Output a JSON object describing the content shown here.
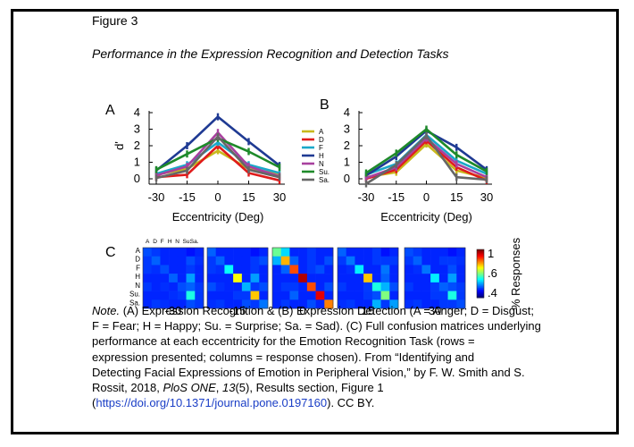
{
  "figure": {
    "number": "Figure 3",
    "title": "Performance in the Expression Recognition and Detection Tasks"
  },
  "chart_data": [
    {
      "type": "line",
      "panel": "A",
      "title": "Expression Recognition",
      "xlabel": "Eccentricity (Deg)",
      "ylabel": "d'",
      "x": [
        -30,
        -15,
        0,
        15,
        30
      ],
      "xlim": [
        -30,
        30
      ],
      "ylim": [
        0,
        4
      ],
      "xticks": [
        "-30",
        "-15",
        "0",
        "15",
        "30"
      ],
      "yticks": [
        "0",
        "1",
        "2",
        "3",
        "4"
      ],
      "series": [
        {
          "name": "A",
          "color": "#c9b81c",
          "values": [
            0.25,
            0.6,
            1.7,
            0.6,
            0.3
          ]
        },
        {
          "name": "D",
          "color": "#e01b1b",
          "values": [
            0.1,
            0.25,
            2.0,
            0.35,
            -0.1
          ]
        },
        {
          "name": "F",
          "color": "#1aa8c9",
          "values": [
            0.3,
            0.85,
            2.2,
            0.85,
            0.35
          ]
        },
        {
          "name": "H",
          "color": "#1f3a93",
          "values": [
            0.5,
            2.0,
            3.75,
            2.25,
            0.8
          ]
        },
        {
          "name": "N",
          "color": "#a8409e",
          "values": [
            0.2,
            0.75,
            2.8,
            0.75,
            0.15
          ]
        },
        {
          "name": "Su.",
          "color": "#1e8a2a",
          "values": [
            0.55,
            1.5,
            2.45,
            1.65,
            0.7
          ]
        },
        {
          "name": "Sa.",
          "color": "#666666",
          "values": [
            0.05,
            0.5,
            2.55,
            0.55,
            0.1
          ]
        }
      ]
    },
    {
      "type": "line",
      "panel": "B",
      "title": "Expression Detection",
      "xlabel": "Eccentricity (Deg)",
      "ylabel": "",
      "x": [
        -30,
        -15,
        0,
        15,
        30
      ],
      "xlim": [
        -30,
        30
      ],
      "ylim": [
        0,
        4
      ],
      "xticks": [
        "-30",
        "-15",
        "0",
        "15",
        "30"
      ],
      "yticks": [
        "0",
        "1",
        "2",
        "3",
        "4"
      ],
      "series": [
        {
          "name": "A",
          "color": "#c9b81c",
          "values": [
            0.1,
            0.4,
            2.1,
            0.5,
            0.05
          ]
        },
        {
          "name": "D",
          "color": "#e01b1b",
          "values": [
            0.0,
            0.55,
            2.3,
            0.7,
            -0.1
          ]
        },
        {
          "name": "F",
          "color": "#1aa8c9",
          "values": [
            0.25,
            0.9,
            2.65,
            1.1,
            0.3
          ]
        },
        {
          "name": "H",
          "color": "#1f3a93",
          "values": [
            0.2,
            1.35,
            2.9,
            1.9,
            0.55
          ]
        },
        {
          "name": "N",
          "color": "#a8409e",
          "values": [
            0.05,
            0.7,
            2.45,
            0.9,
            0.1
          ]
        },
        {
          "name": "Su.",
          "color": "#1e8a2a",
          "values": [
            0.35,
            1.55,
            3.0,
            1.45,
            0.45
          ]
        },
        {
          "name": "Sa.",
          "color": "#666666",
          "values": [
            -0.3,
            0.85,
            2.6,
            0.1,
            -0.05
          ]
        }
      ]
    },
    {
      "type": "heatmap",
      "panel": "C",
      "title": "Full confusion matrices",
      "row_labels": [
        "A",
        "D",
        "F",
        "H",
        "N",
        "Su.",
        "Sa."
      ],
      "col_labels": [
        "A",
        "D",
        "F",
        "H",
        "N",
        "Su.",
        "Sa."
      ],
      "eccentricities": [
        "-30",
        "-15",
        "0",
        "15",
        "30"
      ],
      "colorbar_label": "% Responses",
      "colorbar_ticks": [
        "1",
        ".6",
        ".4"
      ],
      "matrices": [
        [
          [
            0.2,
            0.18,
            0.16,
            0.16,
            0.16,
            0.14,
            0.16
          ],
          [
            0.18,
            0.22,
            0.16,
            0.16,
            0.16,
            0.2,
            0.17
          ],
          [
            0.18,
            0.17,
            0.2,
            0.16,
            0.16,
            0.18,
            0.16
          ],
          [
            0.16,
            0.16,
            0.16,
            0.22,
            0.16,
            0.28,
            0.16
          ],
          [
            0.18,
            0.16,
            0.17,
            0.16,
            0.2,
            0.22,
            0.18
          ],
          [
            0.16,
            0.16,
            0.16,
            0.17,
            0.18,
            0.4,
            0.18
          ],
          [
            0.16,
            0.18,
            0.17,
            0.16,
            0.16,
            0.2,
            0.18
          ]
        ],
        [
          [
            0.22,
            0.16,
            0.16,
            0.16,
            0.16,
            0.14,
            0.16
          ],
          [
            0.18,
            0.22,
            0.16,
            0.16,
            0.16,
            0.18,
            0.2
          ],
          [
            0.18,
            0.17,
            0.38,
            0.16,
            0.16,
            0.18,
            0.16
          ],
          [
            0.16,
            0.16,
            0.16,
            0.62,
            0.16,
            0.28,
            0.16
          ],
          [
            0.2,
            0.17,
            0.16,
            0.16,
            0.3,
            0.18,
            0.2
          ],
          [
            0.16,
            0.16,
            0.16,
            0.18,
            0.18,
            0.68,
            0.16
          ],
          [
            0.17,
            0.18,
            0.16,
            0.16,
            0.2,
            0.18,
            0.24
          ]
        ],
        [
          [
            0.48,
            0.34,
            0.16,
            0.16,
            0.18,
            0.16,
            0.16
          ],
          [
            0.3,
            0.7,
            0.22,
            0.16,
            0.18,
            0.16,
            0.2
          ],
          [
            0.16,
            0.22,
            0.8,
            0.16,
            0.18,
            0.2,
            0.16
          ],
          [
            0.16,
            0.16,
            0.16,
            0.95,
            0.16,
            0.16,
            0.16
          ],
          [
            0.16,
            0.18,
            0.18,
            0.16,
            0.8,
            0.16,
            0.2
          ],
          [
            0.16,
            0.16,
            0.22,
            0.16,
            0.16,
            0.9,
            0.16
          ],
          [
            0.16,
            0.18,
            0.16,
            0.16,
            0.2,
            0.16,
            0.75
          ]
        ],
        [
          [
            0.22,
            0.16,
            0.16,
            0.16,
            0.18,
            0.14,
            0.16
          ],
          [
            0.18,
            0.24,
            0.16,
            0.16,
            0.18,
            0.18,
            0.18
          ],
          [
            0.16,
            0.17,
            0.36,
            0.16,
            0.16,
            0.24,
            0.16
          ],
          [
            0.16,
            0.16,
            0.16,
            0.68,
            0.16,
            0.22,
            0.16
          ],
          [
            0.18,
            0.16,
            0.16,
            0.18,
            0.4,
            0.3,
            0.2
          ],
          [
            0.16,
            0.16,
            0.16,
            0.18,
            0.2,
            0.5,
            0.16
          ],
          [
            0.17,
            0.18,
            0.16,
            0.16,
            0.3,
            0.18,
            0.28
          ]
        ],
        [
          [
            0.2,
            0.18,
            0.16,
            0.16,
            0.16,
            0.14,
            0.16
          ],
          [
            0.18,
            0.22,
            0.16,
            0.16,
            0.18,
            0.18,
            0.17
          ],
          [
            0.16,
            0.17,
            0.24,
            0.16,
            0.16,
            0.2,
            0.16
          ],
          [
            0.16,
            0.16,
            0.16,
            0.36,
            0.16,
            0.28,
            0.16
          ],
          [
            0.18,
            0.16,
            0.16,
            0.18,
            0.22,
            0.2,
            0.18
          ],
          [
            0.16,
            0.16,
            0.16,
            0.18,
            0.18,
            0.4,
            0.18
          ],
          [
            0.17,
            0.18,
            0.16,
            0.16,
            0.18,
            0.18,
            0.2
          ]
        ]
      ]
    }
  ],
  "note": {
    "lead": "Note.",
    "line1": " (A) Expression Recognition & (B) Expression Detection (A = Anger; D = Disgust;",
    "line2": "F = Fear; H = Happy; Su. = Surprise; Sa. = Sad). (C) Full confusion matrices underlying",
    "line3": "performance at each eccentricity for the Emotion Recognition Task (rows =",
    "line4": "expression presented; columns = response chosen). From “Identifying and",
    "line5": "Detecting Facial Expressions of Emotion in Peripheral Vision,” by F. W. Smith and S.",
    "line6a": "Rossit, 2018, ",
    "journal": "PloS ONE",
    "sep1": ", ",
    "volume": "13",
    "line6b": "(5), Results section, Figure 1",
    "paren_open": "(",
    "link": "https://doi.org/10.1371/journal.pone.0197160",
    "line7b": "). CC BY."
  }
}
